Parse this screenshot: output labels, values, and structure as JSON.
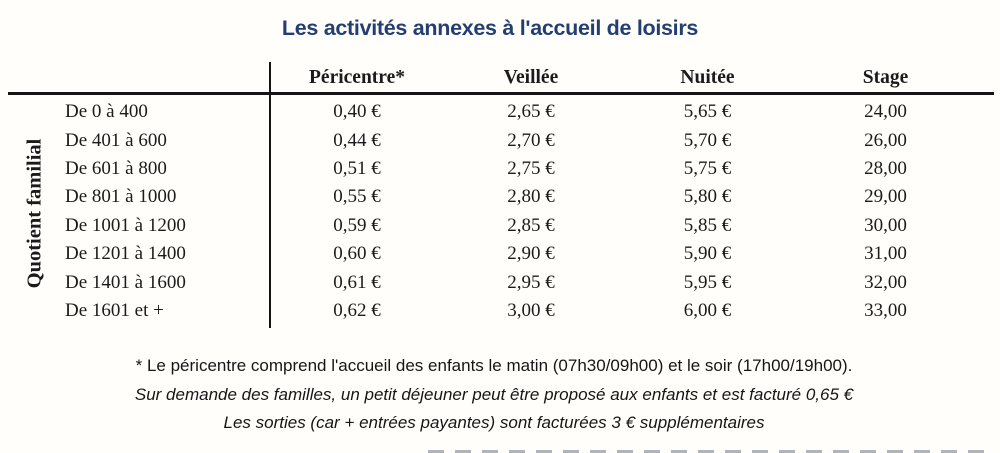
{
  "title": "Les activités annexes à l'accueil de loisirs",
  "table": {
    "row_group_label": "Quotient familial",
    "columns": [
      "Péricentre*",
      "Veillée",
      "Nuitée",
      "Stage"
    ],
    "rows": [
      {
        "label": "De 0 à 400",
        "values": [
          "0,40 €",
          "2,65 €",
          "5,65 €",
          "24,00"
        ]
      },
      {
        "label": "De 401 à 600",
        "values": [
          "0,44 €",
          "2,70 €",
          "5,70 €",
          "26,00"
        ]
      },
      {
        "label": "De 601 à 800",
        "values": [
          "0,51 €",
          "2,75 €",
          "5,75 €",
          "28,00"
        ]
      },
      {
        "label": "De 801 à 1000",
        "values": [
          "0,55 €",
          "2,80 €",
          "5,80 €",
          "29,00"
        ]
      },
      {
        "label": "De 1001 à 1200",
        "values": [
          "0,59 €",
          "2,85 €",
          "5,85 €",
          "30,00"
        ]
      },
      {
        "label": "De 1201 à 1400",
        "values": [
          "0,60 €",
          "2,90 €",
          "5,90 €",
          "31,00"
        ]
      },
      {
        "label": "De 1401 à 1600",
        "values": [
          "0,61 €",
          "2,95 €",
          "5,95 €",
          "32,00"
        ]
      },
      {
        "label": "De 1601 et +",
        "values": [
          "0,62 €",
          "3,00 €",
          "6,00 €",
          "33,00"
        ]
      }
    ]
  },
  "footnotes": [
    "* Le péricentre comprend l'accueil des enfants le matin (07h30/09h00) et le soir (17h00/19h00).",
    "Sur demande des familles, un petit déjeuner peut être proposé aux enfants et est facturé 0,65 €",
    "Les sorties (car + entrées payantes) sont facturées 3 € supplémentaires"
  ],
  "colors": {
    "title_navy": "#233f72",
    "text_ink": "#1b1b1b",
    "rule_black": "#141414",
    "background": "#fffefb"
  }
}
